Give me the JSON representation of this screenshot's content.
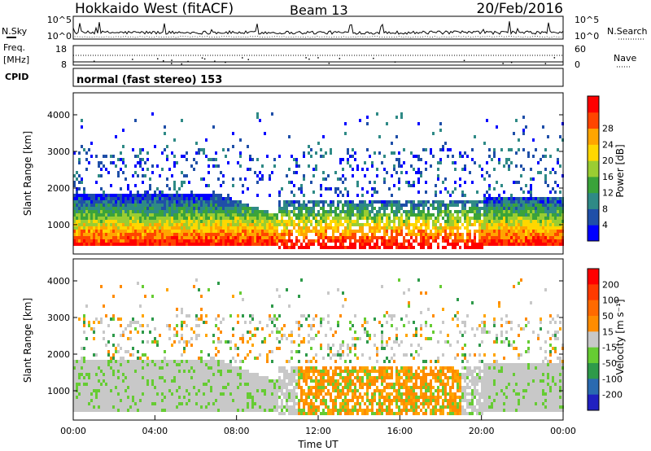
{
  "header": {
    "radar": "Hokkaido West (fitACF)",
    "beam": "Beam 13",
    "date": "20/Feb/2016"
  },
  "top_panel": {
    "left_labels": {
      "nsky": "N.Sky",
      "freq": "Freq.",
      "freq_unit": "[MHz]",
      "cpid": "CPID"
    },
    "right_labels": {
      "nsearch": "N.Search",
      "nave": "Nave"
    },
    "noise_ticks_left": [
      "10^5",
      "10^0"
    ],
    "noise_ticks_right": [
      "10^5",
      "10^0"
    ],
    "freq_ticks": [
      "18",
      "8"
    ],
    "nave_ticks": [
      "60",
      "0"
    ],
    "cpid_text": "normal (fast stereo) 153"
  },
  "chart_data": [
    {
      "type": "heatmap",
      "name": "power",
      "ylabel": "Slant Range [km]",
      "ylim": [
        200,
        4600
      ],
      "yticks": [
        "1000",
        "2000",
        "3000",
        "4000"
      ],
      "colorbar": {
        "label": "Power [dB]",
        "ticks": [
          "4",
          "8",
          "12",
          "16",
          "20",
          "24",
          "28"
        ],
        "colors": [
          "#0000ff",
          "#1f4fa8",
          "#2f8a86",
          "#3aa33a",
          "#9acd32",
          "#ffd700",
          "#ffa500",
          "#ff4500",
          "#ff0000"
        ]
      }
    },
    {
      "type": "heatmap",
      "name": "velocity",
      "ylabel": "Slant Range [km]",
      "ylim": [
        200,
        4600
      ],
      "yticks": [
        "1000",
        "2000",
        "3000",
        "4000"
      ],
      "colorbar": {
        "label": "Velocity [m s⁻¹]",
        "ticks": [
          "200",
          "100",
          "50",
          "15",
          "-15",
          "-50",
          "-100",
          "-200"
        ],
        "colors": [
          "#2020c0",
          "#2a6ab0",
          "#2e9a4a",
          "#66cc33",
          "#c8c8c8",
          "#ff8c00",
          "#ff6a00",
          "#ff3a00",
          "#ff0000"
        ]
      }
    }
  ],
  "xaxis": {
    "label": "Time UT",
    "ticks": [
      "00:00",
      "04:00",
      "08:00",
      "12:00",
      "16:00",
      "20:00",
      "00:00"
    ]
  }
}
